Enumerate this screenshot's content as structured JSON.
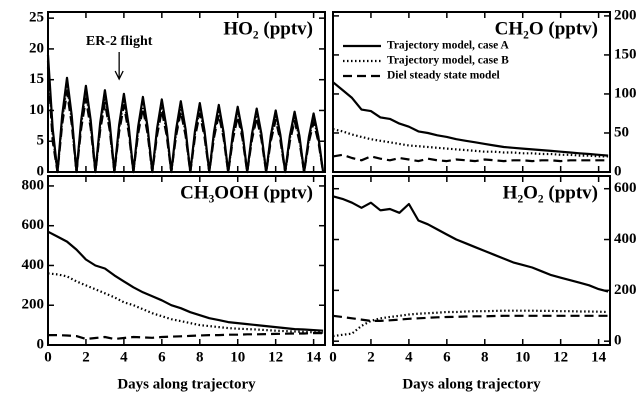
{
  "chart_data": [
    {
      "type": "line",
      "title": "HO₂ (pptv)",
      "yaxis_side": "left",
      "xlim": [
        0,
        14.6
      ],
      "xticks": [
        0,
        2,
        4,
        6,
        8,
        10,
        12,
        14
      ],
      "ylim": [
        0,
        26
      ],
      "yticks": [
        0,
        5,
        10,
        15,
        20,
        25
      ],
      "annotations": [
        {
          "text": "ER-2 flight",
          "x": 3.75
        }
      ],
      "x": [
        0,
        0.25,
        0.5,
        0.75,
        1,
        1.25,
        1.5,
        1.75,
        2,
        2.25,
        2.5,
        2.75,
        3,
        3.25,
        3.5,
        3.75,
        4,
        4.25,
        4.5,
        4.75,
        5,
        5.25,
        5.5,
        5.75,
        6,
        6.25,
        6.5,
        6.75,
        7,
        7.25,
        7.5,
        7.75,
        8,
        8.25,
        8.5,
        8.75,
        9,
        9.25,
        9.5,
        9.75,
        10,
        10.25,
        10.5,
        10.75,
        11,
        11.25,
        11.5,
        11.75,
        12,
        12.25,
        12.5,
        12.75,
        13,
        13.25,
        13.5,
        13.75,
        14,
        14.25,
        14.5
      ],
      "series": [
        {
          "name": "Trajectory model, case A",
          "style": "solid",
          "color": "#000000",
          "values": [
            19,
            7,
            0,
            9.2,
            15.3,
            9.2,
            0,
            8.4,
            14,
            8.4,
            0,
            8.0,
            13.3,
            8.0,
            0,
            7.6,
            12.7,
            7.6,
            0,
            7.3,
            12.2,
            7.3,
            0,
            7.1,
            11.8,
            7.1,
            0,
            6.9,
            11.5,
            6.9,
            0,
            6.7,
            11.2,
            6.7,
            0,
            6.5,
            10.9,
            6.5,
            0,
            6.4,
            10.6,
            6.4,
            0,
            6.2,
            10.3,
            6.2,
            0,
            6,
            10,
            6,
            0,
            5.9,
            9.8,
            5.9,
            0,
            5.7,
            9.5,
            5.7,
            0
          ]
        },
        {
          "name": "Trajectory model, case B",
          "style": "dotted",
          "color": "#000000",
          "values": [
            18,
            6,
            0,
            8.5,
            14.2,
            8.5,
            0,
            7.8,
            13,
            7.8,
            0,
            7.4,
            12.4,
            7.4,
            0,
            7.1,
            11.8,
            7.1,
            0,
            6.8,
            11.3,
            6.8,
            0,
            6.6,
            11,
            6.6,
            0,
            6.4,
            10.7,
            6.4,
            0,
            6.2,
            10.4,
            6.2,
            0,
            6.1,
            10.1,
            6.1,
            0,
            5.9,
            9.9,
            5.9,
            0,
            5.8,
            9.6,
            5.8,
            0,
            5.6,
            9.3,
            5.6,
            0,
            5.5,
            9.1,
            5.5,
            0,
            5.3,
            8.8,
            5.3,
            0
          ]
        },
        {
          "name": "Diel steady state model",
          "style": "dashed",
          "color": "#000000",
          "values": [
            17,
            5,
            0,
            7.8,
            13,
            7.8,
            0,
            7.1,
            11.9,
            7.1,
            0,
            6.8,
            11.3,
            6.8,
            0,
            6.5,
            10.8,
            6.5,
            0,
            6.2,
            10.4,
            6.2,
            0,
            6,
            10,
            6,
            0,
            5.9,
            9.8,
            5.9,
            0,
            5.7,
            9.5,
            5.7,
            0,
            5.6,
            9.3,
            5.6,
            0,
            5.4,
            9,
            5.4,
            0,
            5.3,
            8.8,
            5.3,
            0,
            5.1,
            8.5,
            5.1,
            0,
            5,
            8.3,
            5,
            0,
            4.9,
            8.1,
            4.9,
            0
          ]
        }
      ]
    },
    {
      "type": "line",
      "title": "CH₂O (pptv)",
      "yaxis_side": "right",
      "legend": "upper right",
      "xlim": [
        0,
        14.6
      ],
      "xticks": [
        0,
        2,
        4,
        6,
        8,
        10,
        12,
        14
      ],
      "ylim": [
        0,
        205
      ],
      "yticks": [
        0,
        50,
        100,
        150,
        200
      ],
      "x": [
        0,
        0.5,
        1,
        1.5,
        2,
        2.5,
        3,
        3.5,
        4,
        4.5,
        5,
        5.5,
        6,
        6.5,
        7,
        7.5,
        8,
        8.5,
        9,
        9.5,
        10,
        10.5,
        11,
        11.5,
        12,
        12.5,
        13,
        13.5,
        14,
        14.5
      ],
      "series": [
        {
          "style": "solid",
          "color": "#000000",
          "values": [
            115,
            105,
            95,
            80,
            78,
            70,
            68,
            62,
            58,
            52,
            50,
            47,
            45,
            42,
            40,
            38,
            36,
            34,
            32,
            31,
            30,
            29,
            28,
            27,
            26,
            25,
            24,
            23,
            22,
            21
          ]
        },
        {
          "style": "dotted",
          "color": "#000000",
          "values": [
            55,
            52,
            48,
            45,
            42,
            40,
            38,
            36,
            34,
            33,
            32,
            31,
            30,
            29,
            28,
            27,
            26,
            26,
            25,
            25,
            24,
            24,
            23,
            23,
            22,
            22,
            21,
            21,
            20,
            20
          ]
        },
        {
          "style": "dashed",
          "color": "#000000",
          "values": [
            20,
            22,
            18,
            15,
            20,
            17,
            15,
            18,
            16,
            14,
            17,
            15,
            14,
            16,
            15,
            14,
            16,
            15,
            14,
            15,
            15,
            14,
            15,
            15,
            14,
            15,
            15,
            15,
            15,
            15
          ]
        }
      ]
    },
    {
      "type": "line",
      "title": "CH₃OOH (pptv)",
      "yaxis_side": "left",
      "xlabel": "Days along trajectory",
      "xlim": [
        0,
        14.6
      ],
      "xticks": [
        0,
        2,
        4,
        6,
        8,
        10,
        12,
        14
      ],
      "ylim": [
        0,
        850
      ],
      "yticks": [
        0,
        200,
        400,
        600,
        800
      ],
      "x": [
        0,
        0.5,
        1,
        1.5,
        2,
        2.5,
        3,
        3.5,
        4,
        4.5,
        5,
        5.5,
        6,
        6.5,
        7,
        7.5,
        8,
        8.5,
        9,
        9.5,
        10,
        10.5,
        11,
        11.5,
        12,
        12.5,
        13,
        13.5,
        14,
        14.5
      ],
      "series": [
        {
          "style": "solid",
          "color": "#000000",
          "values": [
            570,
            545,
            520,
            480,
            430,
            400,
            385,
            350,
            320,
            290,
            265,
            245,
            225,
            200,
            185,
            165,
            150,
            135,
            125,
            115,
            110,
            105,
            100,
            95,
            90,
            85,
            80,
            78,
            75,
            72
          ]
        },
        {
          "style": "dotted",
          "color": "#000000",
          "values": [
            360,
            355,
            345,
            320,
            300,
            280,
            260,
            240,
            215,
            200,
            180,
            160,
            145,
            130,
            120,
            110,
            100,
            95,
            90,
            85,
            82,
            80,
            78,
            75,
            72,
            70,
            68,
            66,
            64,
            62
          ]
        },
        {
          "style": "dashed",
          "color": "#000000",
          "values": [
            50,
            50,
            48,
            45,
            30,
            35,
            40,
            30,
            35,
            40,
            38,
            36,
            40,
            42,
            44,
            46,
            48,
            50,
            50,
            52,
            52,
            54,
            54,
            55,
            56,
            57,
            58,
            58,
            60,
            60
          ]
        }
      ]
    },
    {
      "type": "line",
      "title": "H₂O₂ (pptv)",
      "yaxis_side": "right",
      "xlabel": "Days along trajectory",
      "xlim": [
        0,
        14.6
      ],
      "xticks": [
        0,
        2,
        4,
        6,
        8,
        10,
        12,
        14
      ],
      "ylim": [
        -15,
        650
      ],
      "yticks": [
        0,
        200,
        400,
        600
      ],
      "x": [
        0,
        0.5,
        1,
        1.5,
        2,
        2.5,
        3,
        3.5,
        4,
        4.5,
        5,
        5.5,
        6,
        6.5,
        7,
        7.5,
        8,
        8.5,
        9,
        9.5,
        10,
        10.5,
        11,
        11.5,
        12,
        12.5,
        13,
        13.5,
        14,
        14.5
      ],
      "series": [
        {
          "style": "solid",
          "color": "#000000",
          "values": [
            570,
            560,
            545,
            525,
            545,
            515,
            520,
            505,
            540,
            475,
            460,
            440,
            420,
            400,
            385,
            370,
            355,
            340,
            325,
            310,
            300,
            290,
            275,
            260,
            250,
            240,
            230,
            220,
            205,
            195
          ]
        },
        {
          "style": "dotted",
          "color": "#000000",
          "values": [
            20,
            25,
            30,
            60,
            80,
            90,
            95,
            100,
            105,
            108,
            110,
            112,
            115,
            115,
            117,
            118,
            118,
            119,
            120,
            120,
            120,
            120,
            119,
            119,
            118,
            118,
            117,
            117,
            116,
            115
          ]
        },
        {
          "style": "dashed",
          "color": "#000000",
          "values": [
            100,
            95,
            90,
            85,
            80,
            80,
            82,
            85,
            88,
            90,
            92,
            94,
            95,
            96,
            97,
            98,
            98,
            99,
            100,
            100,
            100,
            100,
            100,
            100,
            100,
            100,
            100,
            100,
            100,
            100
          ]
        }
      ]
    }
  ]
}
